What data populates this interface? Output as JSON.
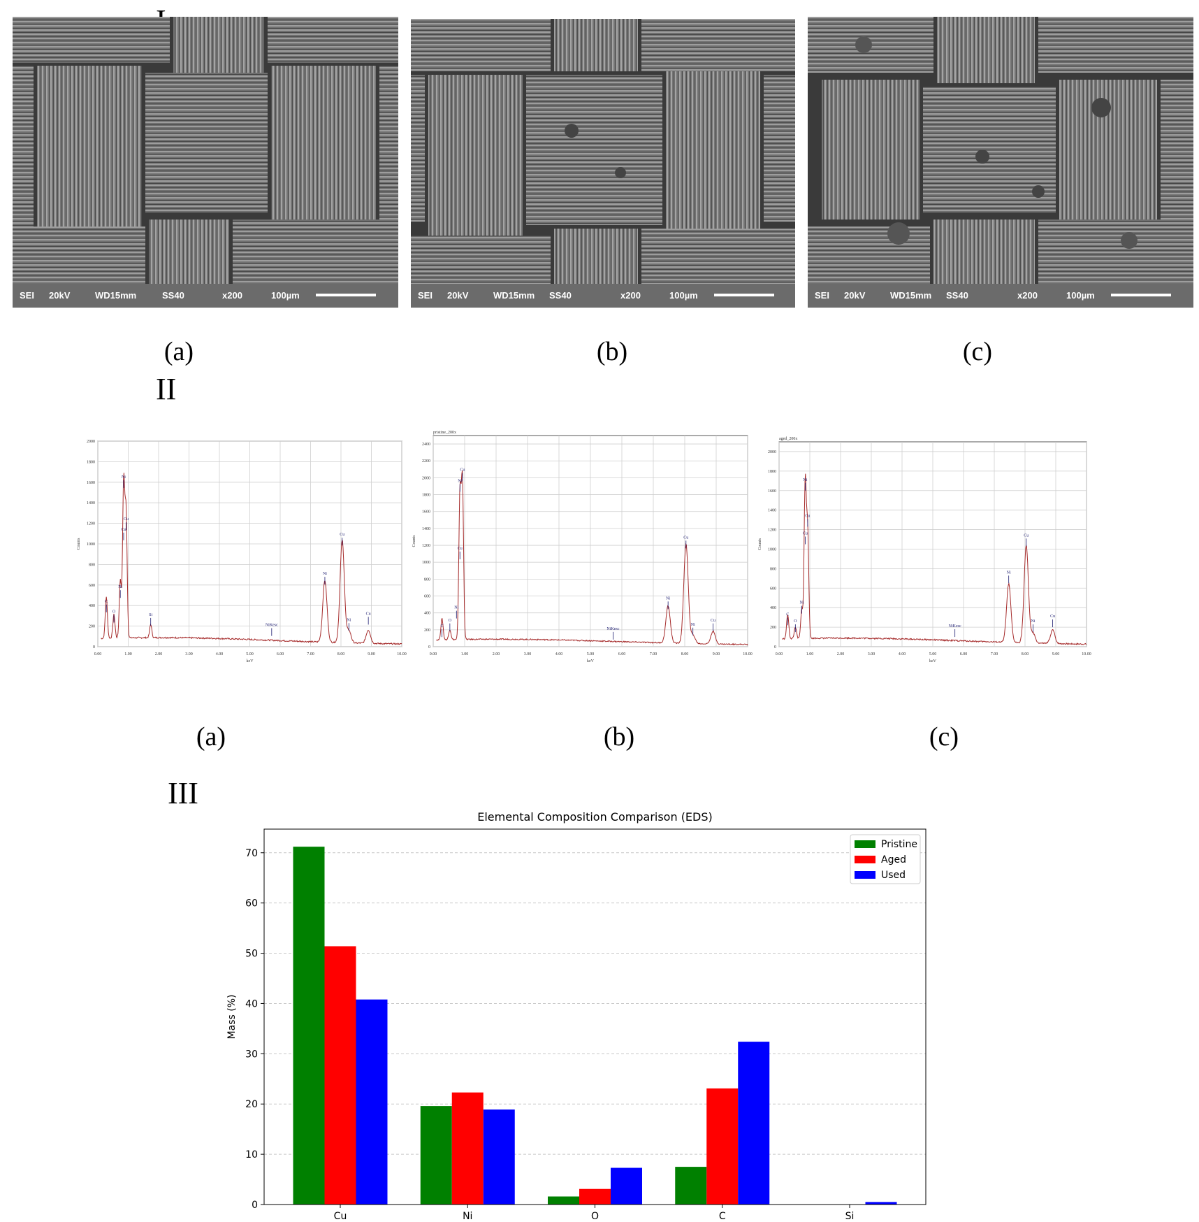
{
  "labels": {
    "section_I": "I",
    "section_II": "II",
    "section_III": "III",
    "sem_a": "(a)",
    "sem_b": "(b)",
    "sem_c": "(c)",
    "eds_a": "(a)",
    "eds_b": "(b)",
    "eds_c": "(c)"
  },
  "sem_info": {
    "mode": "SEI",
    "voltage": "20kV",
    "wd": "WD15mm",
    "ss": "SS40",
    "mag": "x200",
    "scale": "100µm"
  },
  "eds_spectra": [
    {
      "id": "a",
      "title": "",
      "ylabel": "Counts",
      "xlabel": "keV",
      "yticks": [
        "0",
        "200",
        "400",
        "600",
        "800",
        "1000",
        "1200",
        "1400",
        "1600",
        "1800",
        "2000"
      ],
      "ymax": 2000,
      "xticks": [
        "0.00",
        "1.00",
        "2.00",
        "3.00",
        "4.00",
        "5.00",
        "6.00",
        "7.00",
        "8.00",
        "9.00",
        "10.00"
      ],
      "peaks": [
        {
          "e": 0.28,
          "h": 400,
          "label": "C"
        },
        {
          "e": 0.53,
          "h": 230,
          "label": "O"
        },
        {
          "e": 0.74,
          "h": 560,
          "label": "Ni"
        },
        {
          "e": 0.85,
          "h": 1500,
          "label": "Ni"
        },
        {
          "e": 0.93,
          "h": 1200,
          "label": "Cu"
        },
        {
          "e": 1.74,
          "h": 130,
          "label": "Si"
        },
        {
          "e": 7.47,
          "h": 600,
          "label": "Ni"
        },
        {
          "e": 8.04,
          "h": 1000,
          "label": "Cu"
        },
        {
          "e": 8.26,
          "h": 120,
          "label": "Ni"
        },
        {
          "e": 8.9,
          "h": 130,
          "label": "Cu"
        }
      ],
      "annotations": [
        {
          "e": 0.28,
          "y": 430,
          "text": "C"
        },
        {
          "e": 0.53,
          "y": 330,
          "text": "O"
        },
        {
          "e": 0.74,
          "y": 570,
          "text": "Ni"
        },
        {
          "e": 0.85,
          "y": 1640,
          "text": "Ni"
        },
        {
          "e": 0.93,
          "y": 1230,
          "text": "Cu"
        },
        {
          "e": 0.85,
          "y": 1130,
          "text": "Cu"
        },
        {
          "e": 1.74,
          "y": 300,
          "text": "Si"
        },
        {
          "e": 5.72,
          "y": 200,
          "text": "NiKesc"
        },
        {
          "e": 7.47,
          "y": 700,
          "text": "Ni"
        },
        {
          "e": 8.04,
          "y": 1080,
          "text": "Cu"
        },
        {
          "e": 8.26,
          "y": 250,
          "text": "Ni"
        },
        {
          "e": 8.9,
          "y": 310,
          "text": "Cu"
        }
      ]
    },
    {
      "id": "b",
      "title": "pristine_200x",
      "ylabel": "Counts",
      "xlabel": "keV",
      "yticks": [
        "0",
        "200",
        "400",
        "600",
        "800",
        "1000",
        "1200",
        "1400",
        "1600",
        "1800",
        "2000",
        "2200",
        "2400"
      ],
      "ymax": 2500,
      "xticks": [
        "0.00",
        "1.00",
        "2.00",
        "3.00",
        "4.00",
        "5.00",
        "6.00",
        "7.00",
        "8.00",
        "9.00",
        "10.00"
      ],
      "peaks": [
        {
          "e": 0.28,
          "h": 250,
          "label": "C"
        },
        {
          "e": 0.53,
          "h": 120,
          "label": "O"
        },
        {
          "e": 0.85,
          "h": 1700,
          "label": "Ni"
        },
        {
          "e": 0.93,
          "h": 1850,
          "label": "Cu"
        },
        {
          "e": 7.47,
          "h": 440,
          "label": "Ni"
        },
        {
          "e": 8.04,
          "h": 1180,
          "label": "Cu"
        },
        {
          "e": 8.26,
          "h": 100,
          "label": "Ni"
        },
        {
          "e": 8.9,
          "h": 150,
          "label": "Cu"
        }
      ],
      "annotations": [
        {
          "e": 0.28,
          "y": 230,
          "text": "C"
        },
        {
          "e": 0.53,
          "y": 300,
          "text": "O"
        },
        {
          "e": 0.74,
          "y": 450,
          "text": "Ni"
        },
        {
          "e": 0.85,
          "y": 1950,
          "text": "Ni"
        },
        {
          "e": 0.93,
          "y": 2080,
          "text": "Cu"
        },
        {
          "e": 0.85,
          "y": 1150,
          "text": "Cu"
        },
        {
          "e": 5.72,
          "y": 200,
          "text": "NiKesc"
        },
        {
          "e": 7.47,
          "y": 560,
          "text": "Ni"
        },
        {
          "e": 8.04,
          "y": 1280,
          "text": "Cu"
        },
        {
          "e": 8.26,
          "y": 250,
          "text": "Ni"
        },
        {
          "e": 8.9,
          "y": 300,
          "text": "Cu"
        }
      ]
    },
    {
      "id": "c",
      "title": "aged_200x",
      "ylabel": "Counts",
      "xlabel": "keV",
      "yticks": [
        "0",
        "200",
        "400",
        "600",
        "800",
        "1000",
        "1200",
        "1400",
        "1600",
        "1800",
        "2000"
      ],
      "ymax": 2100,
      "xticks": [
        "0.00",
        "1.00",
        "2.00",
        "3.00",
        "4.00",
        "5.00",
        "6.00",
        "7.00",
        "8.00",
        "9.00",
        "10.00"
      ],
      "peaks": [
        {
          "e": 0.28,
          "h": 250,
          "label": "C"
        },
        {
          "e": 0.53,
          "h": 120,
          "label": "O"
        },
        {
          "e": 0.74,
          "h": 300,
          "label": "Ni"
        },
        {
          "e": 0.85,
          "h": 1600,
          "label": "Ni"
        },
        {
          "e": 0.93,
          "h": 1100,
          "label": "Cu"
        },
        {
          "e": 7.47,
          "h": 600,
          "label": "Ni"
        },
        {
          "e": 8.04,
          "h": 1000,
          "label": "Cu"
        },
        {
          "e": 8.26,
          "h": 100,
          "label": "Ni"
        },
        {
          "e": 8.9,
          "h": 140,
          "label": "Cu"
        }
      ],
      "annotations": [
        {
          "e": 0.28,
          "y": 320,
          "text": "C"
        },
        {
          "e": 0.53,
          "y": 250,
          "text": "O"
        },
        {
          "e": 0.74,
          "y": 440,
          "text": "Ni"
        },
        {
          "e": 0.85,
          "y": 1700,
          "text": "Ni"
        },
        {
          "e": 0.93,
          "y": 1330,
          "text": "Cu"
        },
        {
          "e": 0.85,
          "y": 1150,
          "text": "Cu"
        },
        {
          "e": 5.72,
          "y": 200,
          "text": "NiKesc"
        },
        {
          "e": 7.47,
          "y": 750,
          "text": "Ni"
        },
        {
          "e": 8.04,
          "y": 1130,
          "text": "Cu"
        },
        {
          "e": 8.26,
          "y": 250,
          "text": "Ni"
        },
        {
          "e": 8.9,
          "y": 300,
          "text": "Cu"
        }
      ]
    }
  ],
  "chart_data": {
    "type": "bar",
    "title": "Elemental Composition Comparison (EDS)",
    "xlabel": "",
    "ylabel": "Mass (%)",
    "categories": [
      "Cu",
      "Ni",
      "O",
      "C",
      "Si"
    ],
    "series": [
      {
        "name": "Pristine",
        "color": "#008000",
        "values": [
          71.2,
          19.6,
          1.6,
          7.5,
          0
        ]
      },
      {
        "name": "Aged",
        "color": "#ff0000",
        "values": [
          51.4,
          22.3,
          3.1,
          23.1,
          0
        ]
      },
      {
        "name": "Used",
        "color": "#0000ff",
        "values": [
          40.8,
          18.9,
          7.3,
          32.4,
          0.5
        ]
      }
    ],
    "yticks": [
      0,
      10,
      20,
      30,
      40,
      50,
      60,
      70
    ],
    "ylim": [
      0,
      74.7
    ],
    "grid": "y-dashed",
    "legend_position": "top-right"
  }
}
